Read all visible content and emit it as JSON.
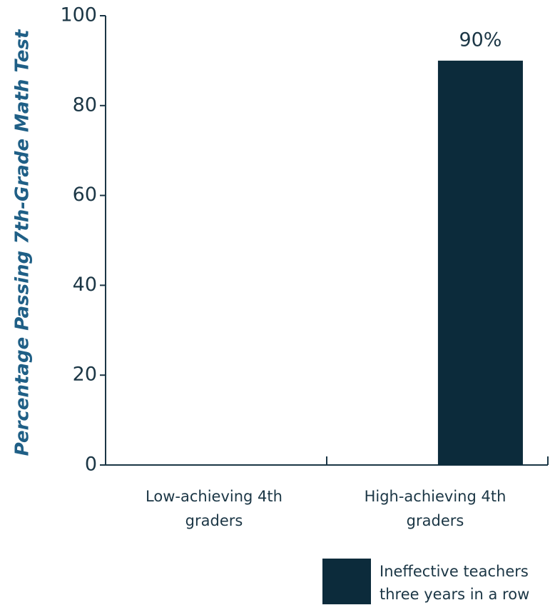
{
  "chart_data": {
    "type": "bar",
    "y_label": "Percentage Passing 7th-Grade Math Test",
    "categories": [
      "Low-achieving 4th graders",
      "High-achieving 4th graders"
    ],
    "series": [
      {
        "name": "Ineffective teachers three years in a row",
        "color": "#0c2b3b",
        "values": [
          null,
          90
        ],
        "value_labels": [
          null,
          "90%"
        ]
      }
    ],
    "ylim": [
      0,
      100
    ],
    "yticks": [
      0,
      20,
      40,
      60,
      80,
      100
    ]
  }
}
